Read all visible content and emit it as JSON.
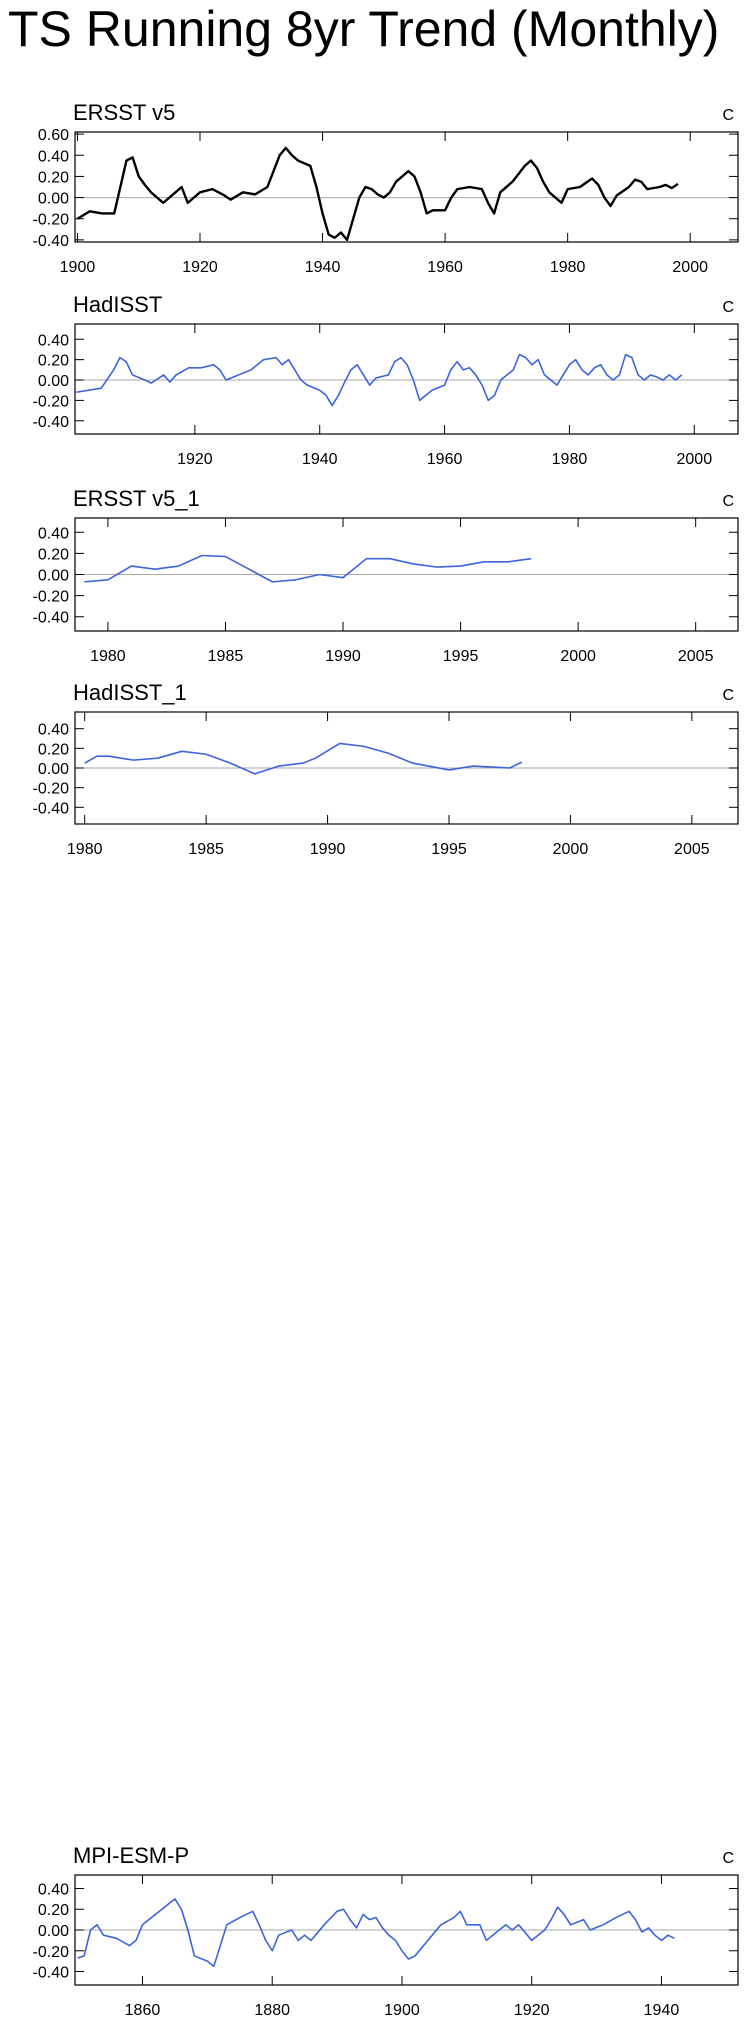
{
  "title": "TS Running 8yr Trend (Monthly)",
  "chart_data": [
    {
      "type": "line",
      "title": "ERSST v5",
      "units": "C",
      "color": "#000000",
      "xlim": [
        1899.6,
        2007.8
      ],
      "ylim": [
        -0.42,
        0.62
      ],
      "xticks": [
        1900,
        1920,
        1940,
        1960,
        1980,
        2000
      ],
      "yticks": [
        {
          "value": 0.6,
          "label": "0.60"
        },
        {
          "value": 0.4,
          "label": "0.40"
        },
        {
          "value": 0.2,
          "label": "0.20"
        },
        {
          "value": 0,
          "label": "0.00"
        },
        {
          "value": -0.2,
          "label": "-0.20"
        },
        {
          "value": -0.4,
          "label": "-0.40"
        }
      ],
      "x": [
        1900,
        1902,
        1904,
        1906,
        1907,
        1908,
        1909,
        1910,
        1911,
        1912,
        1914,
        1916,
        1917,
        1918,
        1920,
        1922,
        1924,
        1925,
        1927,
        1929,
        1931,
        1933,
        1934,
        1935,
        1936,
        1938,
        1939,
        1940,
        1941,
        1942,
        1943,
        1944,
        1945,
        1946,
        1947,
        1948,
        1949,
        1950,
        1951,
        1952,
        1953,
        1954,
        1955,
        1956,
        1957,
        1958,
        1960,
        1961,
        1962,
        1964,
        1966,
        1967,
        1968,
        1969,
        1971,
        1973,
        1974,
        1975,
        1976,
        1977,
        1979,
        1980,
        1982,
        1984,
        1985,
        1986,
        1987,
        1988,
        1990,
        1991,
        1992,
        1993,
        1995,
        1996,
        1997,
        1998
      ],
      "values": [
        -0.2,
        -0.13,
        -0.15,
        -0.15,
        0.1,
        0.35,
        0.38,
        0.2,
        0.12,
        0.05,
        -0.05,
        0.05,
        0.1,
        -0.05,
        0.05,
        0.08,
        0.02,
        -0.02,
        0.05,
        0.03,
        0.1,
        0.4,
        0.47,
        0.4,
        0.35,
        0.3,
        0.1,
        -0.15,
        -0.35,
        -0.38,
        -0.33,
        -0.4,
        -0.2,
        0.0,
        0.1,
        0.08,
        0.03,
        0.0,
        0.05,
        0.15,
        0.2,
        0.25,
        0.2,
        0.05,
        -0.15,
        -0.12,
        -0.12,
        0.0,
        0.08,
        0.1,
        0.08,
        -0.05,
        -0.15,
        0.05,
        0.15,
        0.3,
        0.35,
        0.28,
        0.15,
        0.05,
        -0.05,
        0.08,
        0.1,
        0.18,
        0.12,
        0.0,
        -0.08,
        0.02,
        0.1,
        0.17,
        0.15,
        0.08,
        0.1,
        0.12,
        0.09,
        0.13
      ]
    },
    {
      "type": "line",
      "title": "HadISST",
      "units": "C",
      "color": "#3c64dc",
      "xlim": [
        1900.8,
        2007
      ],
      "ylim": [
        -0.53,
        0.55
      ],
      "xticks": [
        1920,
        1940,
        1960,
        1980,
        2000
      ],
      "yticks": [
        {
          "value": 0.4,
          "label": "0.40"
        },
        {
          "value": 0.2,
          "label": "0.20"
        },
        {
          "value": 0,
          "label": "0.00"
        },
        {
          "value": -0.2,
          "label": "-0.20"
        },
        {
          "value": -0.4,
          "label": "-0.40"
        }
      ],
      "x": [
        1901,
        1903,
        1905,
        1907,
        1908,
        1909,
        1910,
        1912,
        1913,
        1915,
        1916,
        1917,
        1919,
        1921,
        1923,
        1924,
        1925,
        1927,
        1929,
        1931,
        1933,
        1934,
        1935,
        1936,
        1937,
        1938,
        1940,
        1941,
        1942,
        1943,
        1944,
        1945,
        1946,
        1947,
        1948,
        1949,
        1951,
        1952,
        1953,
        1954,
        1955,
        1956,
        1957,
        1958,
        1960,
        1961,
        1962,
        1963,
        1964,
        1965,
        1966,
        1967,
        1968,
        1969,
        1970,
        1971,
        1972,
        1973,
        1974,
        1975,
        1976,
        1977,
        1978,
        1979,
        1980,
        1981,
        1982,
        1983,
        1984,
        1985,
        1986,
        1987,
        1988,
        1989,
        1990,
        1991,
        1992,
        1993,
        1994,
        1995,
        1996,
        1997,
        1998
      ],
      "values": [
        -0.12,
        -0.1,
        -0.08,
        0.1,
        0.22,
        0.18,
        0.05,
        0.0,
        -0.03,
        0.05,
        -0.02,
        0.05,
        0.12,
        0.12,
        0.15,
        0.1,
        0.0,
        0.05,
        0.1,
        0.2,
        0.22,
        0.15,
        0.2,
        0.1,
        0.0,
        -0.05,
        -0.1,
        -0.15,
        -0.25,
        -0.15,
        -0.02,
        0.1,
        0.15,
        0.05,
        -0.05,
        0.02,
        0.05,
        0.18,
        0.22,
        0.15,
        0.0,
        -0.2,
        -0.15,
        -0.1,
        -0.05,
        0.1,
        0.18,
        0.1,
        0.12,
        0.05,
        -0.05,
        -0.2,
        -0.15,
        0.0,
        0.05,
        0.1,
        0.25,
        0.22,
        0.15,
        0.2,
        0.05,
        0.0,
        -0.05,
        0.05,
        0.15,
        0.2,
        0.1,
        0.05,
        0.12,
        0.15,
        0.05,
        0.0,
        0.05,
        0.25,
        0.22,
        0.05,
        0.0,
        0.05,
        0.03,
        0.0,
        0.05,
        0.0,
        0.05
      ]
    },
    {
      "type": "line",
      "title": "ERSST v5_1",
      "units": "C",
      "color": "#3c64dc",
      "xlim": [
        1978.6,
        2006.8
      ],
      "ylim": [
        -0.535,
        0.535
      ],
      "xticks": [
        1980,
        1985,
        1990,
        1995,
        2000,
        2005
      ],
      "yticks": [
        {
          "value": 0.4,
          "label": "0.40"
        },
        {
          "value": 0.2,
          "label": "0.20"
        },
        {
          "value": 0,
          "label": "0.00"
        },
        {
          "value": -0.2,
          "label": "-0.20"
        },
        {
          "value": -0.4,
          "label": "-0.40"
        }
      ],
      "x": [
        1979,
        1980,
        1981,
        1982,
        1983,
        1984,
        1985,
        1986,
        1987,
        1988,
        1989,
        1990,
        1991,
        1992,
        1993,
        1994,
        1995,
        1996,
        1997,
        1998
      ],
      "values": [
        -0.07,
        -0.05,
        0.08,
        0.05,
        0.08,
        0.18,
        0.17,
        0.05,
        -0.07,
        -0.05,
        0.0,
        -0.03,
        0.15,
        0.15,
        0.1,
        0.07,
        0.08,
        0.12,
        0.12,
        0.15
      ]
    },
    {
      "type": "line",
      "title": "HadISST_1",
      "units": "C",
      "color": "#3c64dc",
      "xlim": [
        1979.6,
        2006.9
      ],
      "ylim": [
        -0.57,
        0.57
      ],
      "xticks": [
        1980,
        1985,
        1990,
        1995,
        2000,
        2005
      ],
      "yticks": [
        {
          "value": 0.4,
          "label": "0.40"
        },
        {
          "value": 0.2,
          "label": "0.20"
        },
        {
          "value": 0,
          "label": "0.00"
        },
        {
          "value": -0.2,
          "label": "-0.20"
        },
        {
          "value": -0.4,
          "label": "-0.40"
        }
      ],
      "x": [
        1980,
        1980.5,
        1981,
        1982,
        1983,
        1984,
        1985,
        1986,
        1987,
        1988,
        1989,
        1989.5,
        1990.5,
        1991.5,
        1992.5,
        1993.5,
        1995,
        1996,
        1997.5,
        1998
      ],
      "values": [
        0.05,
        0.12,
        0.12,
        0.08,
        0.1,
        0.17,
        0.14,
        0.05,
        -0.06,
        0.02,
        0.05,
        0.1,
        0.25,
        0.22,
        0.15,
        0.05,
        -0.02,
        0.02,
        0.0,
        0.06
      ]
    },
    {
      "type": "line",
      "title": "MPI-ESM-P",
      "units": "C",
      "color": "#3c64dc",
      "xlim": [
        1849.6,
        1951.8
      ],
      "ylim": [
        -0.53,
        0.53
      ],
      "xticks": [
        1860,
        1880,
        1900,
        1920,
        1940
      ],
      "yticks": [
        {
          "value": 0.4,
          "label": "0.40"
        },
        {
          "value": 0.2,
          "label": "0.20"
        },
        {
          "value": 0,
          "label": "0.00"
        },
        {
          "value": -0.2,
          "label": "-0.20"
        },
        {
          "value": -0.4,
          "label": "-0.40"
        }
      ],
      "x": [
        1850,
        1851,
        1852,
        1853,
        1854,
        1856,
        1858,
        1859,
        1860,
        1862,
        1863,
        1864,
        1865,
        1866,
        1867,
        1868,
        1870,
        1871,
        1872,
        1873,
        1875,
        1877,
        1878,
        1879,
        1880,
        1881,
        1883,
        1884,
        1885,
        1886,
        1888,
        1890,
        1891,
        1892,
        1893,
        1894,
        1895,
        1896,
        1897,
        1898,
        1899,
        1900,
        1901,
        1902,
        1904,
        1906,
        1908,
        1909,
        1910,
        1912,
        1913,
        1914,
        1916,
        1917,
        1918,
        1920,
        1922,
        1923,
        1924,
        1925,
        1926,
        1928,
        1929,
        1931,
        1933,
        1935,
        1936,
        1937,
        1938,
        1939,
        1940,
        1941,
        1942
      ],
      "values": [
        -0.27,
        -0.25,
        0.0,
        0.05,
        -0.05,
        -0.08,
        -0.15,
        -0.1,
        0.05,
        0.15,
        0.2,
        0.25,
        0.3,
        0.2,
        0.0,
        -0.25,
        -0.3,
        -0.35,
        -0.15,
        0.05,
        0.12,
        0.18,
        0.05,
        -0.1,
        -0.2,
        -0.05,
        0.0,
        -0.1,
        -0.05,
        -0.1,
        0.05,
        0.18,
        0.2,
        0.1,
        0.02,
        0.15,
        0.1,
        0.12,
        0.02,
        -0.05,
        -0.1,
        -0.2,
        -0.28,
        -0.25,
        -0.1,
        0.05,
        0.12,
        0.18,
        0.05,
        0.05,
        -0.1,
        -0.05,
        0.05,
        0.0,
        0.05,
        -0.1,
        0.0,
        0.1,
        0.22,
        0.15,
        0.05,
        0.1,
        0.0,
        0.05,
        0.12,
        0.18,
        0.1,
        -0.02,
        0.02,
        -0.05,
        -0.1,
        -0.05,
        -0.08
      ]
    }
  ]
}
